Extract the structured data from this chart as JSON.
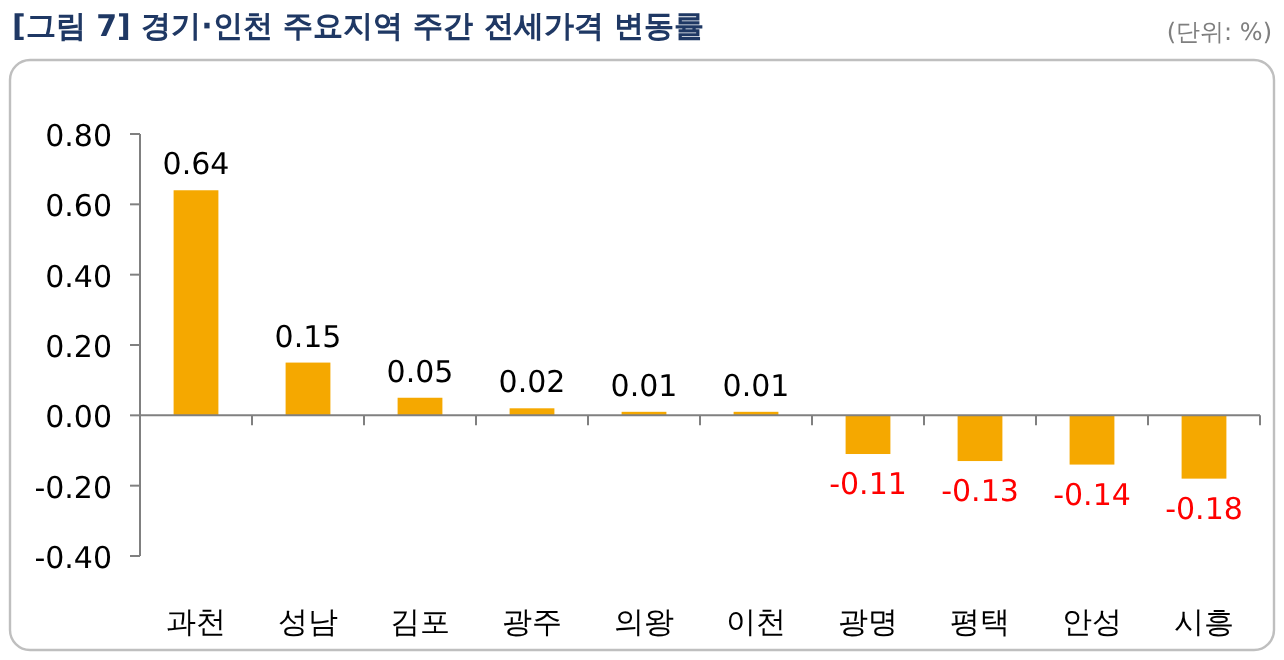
{
  "chart_data": {
    "type": "bar",
    "title": "[그림 7] 경기·인천 주요지역 주간 전세가격 변동률",
    "annotations": [
      "(단위: %)"
    ],
    "categories": [
      "과천",
      "성남",
      "김포",
      "광주",
      "의왕",
      "이천",
      "광명",
      "평택",
      "안성",
      "시흥"
    ],
    "values": [
      0.64,
      0.15,
      0.05,
      0.02,
      0.01,
      0.01,
      -0.11,
      -0.13,
      -0.14,
      -0.18
    ],
    "value_labels": [
      "0.64",
      "0.15",
      "0.05",
      "0.02",
      "0.01",
      "0.01",
      "-0.11",
      "-0.13",
      "-0.14",
      "-0.18"
    ],
    "color": "#f5a800",
    "ylim": [
      -0.4,
      0.8
    ],
    "yticks": [
      {
        "value": -0.4,
        "label": "-0.40"
      },
      {
        "value": -0.2,
        "label": "-0.20"
      },
      {
        "value": 0,
        "label": "0.00"
      },
      {
        "value": 0.2,
        "label": "0.20"
      },
      {
        "value": 0.4,
        "label": "0.40"
      },
      {
        "value": 0.6,
        "label": "0.60"
      },
      {
        "value": 0.8,
        "label": "0.80"
      }
    ],
    "orientation": "vertical"
  }
}
